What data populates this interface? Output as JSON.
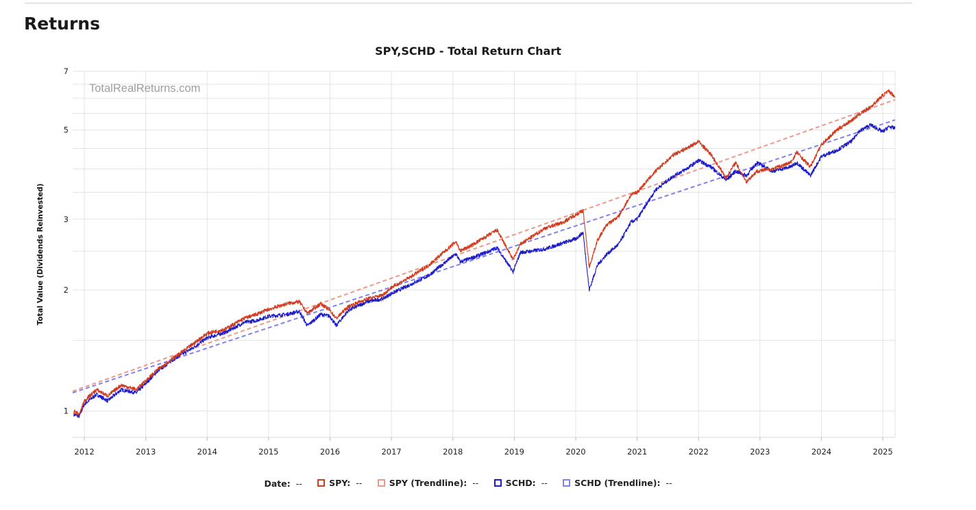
{
  "page": {
    "heading": "Returns"
  },
  "chart_data": {
    "type": "line",
    "title": "SPY,SCHD - Total Return Chart",
    "watermark": "TotalRealReturns.com",
    "ylabel": "Total Value (Dividends Reinvested)",
    "xlabel": "",
    "y_scale": "log",
    "ylim": [
      0.86,
      7.0
    ],
    "y_ticks": [
      1,
      2,
      3,
      5,
      7
    ],
    "y_tick_labels": [
      "1",
      "2",
      "3",
      "5",
      "7"
    ],
    "x_ticks": [
      2012,
      2013,
      2014,
      2015,
      2016,
      2017,
      2018,
      2019,
      2020,
      2021,
      2022,
      2023,
      2024,
      2025
    ],
    "x_tick_labels": [
      "2012",
      "2013",
      "2014",
      "2015",
      "2016",
      "2017",
      "2018",
      "2019",
      "2020",
      "2021",
      "2022",
      "2023",
      "2024",
      "2025"
    ],
    "xlim": [
      2011.81,
      2025.2
    ],
    "grid": true,
    "legend_position": "bottom",
    "legend": {
      "date_label": "Date:",
      "date_value": "--",
      "items": [
        {
          "label": "SPY:",
          "value": "--",
          "color": "#d23a1e"
        },
        {
          "label": "SPY (Trendline):",
          "value": "--",
          "color": "#ef9788"
        },
        {
          "label": "SCHD:",
          "value": "--",
          "color": "#1c1cc8"
        },
        {
          "label": "SCHD (Trendline):",
          "value": "--",
          "color": "#8080f0"
        }
      ]
    },
    "series": [
      {
        "name": "SPY",
        "color": "#d23a1e",
        "style": "solid",
        "x": [
          2011.83,
          2011.92,
          2012.0,
          2012.2,
          2012.38,
          2012.6,
          2012.85,
          2012.95,
          2013.2,
          2013.5,
          2013.75,
          2014.0,
          2014.3,
          2014.6,
          2014.8,
          2015.0,
          2015.3,
          2015.5,
          2015.63,
          2015.85,
          2016.0,
          2016.1,
          2016.3,
          2016.6,
          2016.85,
          2017.0,
          2017.3,
          2017.6,
          2017.9,
          2018.05,
          2018.12,
          2018.3,
          2018.6,
          2018.72,
          2018.98,
          2019.1,
          2019.3,
          2019.5,
          2019.8,
          2020.0,
          2020.12,
          2020.22,
          2020.35,
          2020.5,
          2020.7,
          2020.9,
          2021.0,
          2021.3,
          2021.6,
          2021.8,
          2022.0,
          2022.2,
          2022.45,
          2022.6,
          2022.78,
          2022.95,
          2023.2,
          2023.5,
          2023.6,
          2023.82,
          2024.0,
          2024.25,
          2024.5,
          2024.6,
          2024.8,
          2025.0,
          2025.1,
          2025.2
        ],
        "y": [
          1.0,
          0.98,
          1.06,
          1.13,
          1.09,
          1.16,
          1.13,
          1.17,
          1.27,
          1.37,
          1.46,
          1.56,
          1.6,
          1.7,
          1.74,
          1.79,
          1.85,
          1.87,
          1.75,
          1.85,
          1.78,
          1.7,
          1.82,
          1.9,
          1.94,
          2.03,
          2.15,
          2.3,
          2.52,
          2.64,
          2.5,
          2.58,
          2.75,
          2.82,
          2.38,
          2.6,
          2.72,
          2.85,
          2.95,
          3.08,
          3.15,
          2.28,
          2.65,
          2.9,
          3.05,
          3.45,
          3.5,
          3.95,
          4.35,
          4.5,
          4.68,
          4.35,
          3.8,
          4.15,
          3.72,
          3.95,
          4.0,
          4.15,
          4.4,
          4.05,
          4.6,
          5.0,
          5.3,
          5.45,
          5.7,
          6.1,
          6.25,
          6.05
        ]
      },
      {
        "name": "SCHD",
        "color": "#1c1cc8",
        "style": "solid",
        "x": [
          2011.83,
          2011.92,
          2012.0,
          2012.2,
          2012.38,
          2012.6,
          2012.85,
          2012.95,
          2013.2,
          2013.5,
          2013.75,
          2014.0,
          2014.3,
          2014.6,
          2014.8,
          2015.0,
          2015.3,
          2015.5,
          2015.63,
          2015.85,
          2016.0,
          2016.1,
          2016.3,
          2016.6,
          2016.85,
          2017.0,
          2017.3,
          2017.6,
          2017.9,
          2018.05,
          2018.12,
          2018.3,
          2018.6,
          2018.72,
          2018.98,
          2019.1,
          2019.3,
          2019.5,
          2019.8,
          2020.0,
          2020.12,
          2020.22,
          2020.35,
          2020.5,
          2020.7,
          2020.9,
          2021.0,
          2021.3,
          2021.6,
          2021.8,
          2022.0,
          2022.2,
          2022.45,
          2022.6,
          2022.78,
          2022.95,
          2023.2,
          2023.5,
          2023.6,
          2023.82,
          2024.0,
          2024.25,
          2024.5,
          2024.6,
          2024.8,
          2025.0,
          2025.1,
          2025.2
        ],
        "y": [
          0.98,
          0.97,
          1.04,
          1.1,
          1.06,
          1.13,
          1.11,
          1.15,
          1.26,
          1.36,
          1.43,
          1.52,
          1.57,
          1.66,
          1.68,
          1.72,
          1.74,
          1.77,
          1.63,
          1.74,
          1.72,
          1.63,
          1.78,
          1.87,
          1.9,
          1.96,
          2.06,
          2.17,
          2.36,
          2.46,
          2.35,
          2.4,
          2.5,
          2.55,
          2.22,
          2.48,
          2.5,
          2.53,
          2.62,
          2.68,
          2.78,
          2.0,
          2.3,
          2.45,
          2.6,
          2.95,
          3.0,
          3.55,
          3.85,
          4.0,
          4.2,
          4.05,
          3.75,
          3.95,
          3.85,
          4.15,
          3.95,
          4.05,
          4.15,
          3.85,
          4.3,
          4.45,
          4.7,
          4.95,
          5.15,
          4.95,
          5.1,
          5.05
        ]
      },
      {
        "name": "SPY (Trendline)",
        "color": "#ef9788",
        "style": "dashed",
        "x": [
          2011.81,
          2025.2
        ],
        "y": [
          1.12,
          5.95
        ]
      },
      {
        "name": "SCHD (Trendline)",
        "color": "#8080f0",
        "style": "dashed",
        "x": [
          2011.81,
          2025.2
        ],
        "y": [
          1.11,
          5.3
        ]
      }
    ]
  }
}
